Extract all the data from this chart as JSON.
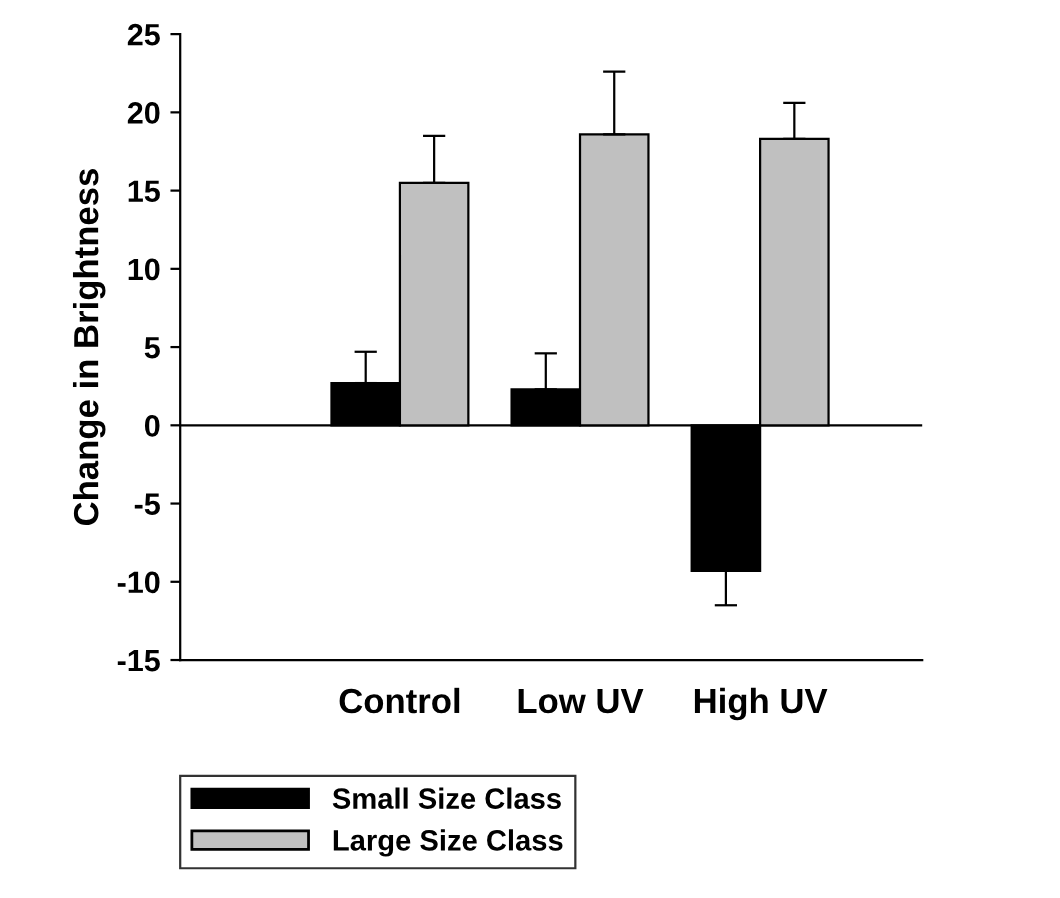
{
  "chart_data": {
    "type": "bar",
    "ylabel": "Change in Brightness",
    "categories": [
      "Control",
      "Low UV",
      "High UV"
    ],
    "series": [
      {
        "name": "Small Size Class",
        "color": "#000000",
        "values": [
          2.7,
          2.3,
          -9.3
        ],
        "errors": [
          [
            2.7,
            4.7
          ],
          [
            2.3,
            4.6
          ],
          [
            -11.5,
            -9.3
          ]
        ]
      },
      {
        "name": "Large Size Class",
        "color": "#c0c0c0",
        "values": [
          15.5,
          18.6,
          18.3
        ],
        "errors": [
          [
            15.5,
            18.5
          ],
          [
            18.6,
            22.6
          ],
          [
            18.3,
            20.6
          ]
        ]
      }
    ],
    "ylim": [
      -15,
      25
    ],
    "yticks": [
      -15,
      -10,
      -5,
      0,
      5,
      10,
      15,
      20,
      25
    ],
    "ref_lines": [
      {
        "axis": "y",
        "value": 0,
        "color": "#000000"
      }
    ],
    "grid": false,
    "legend": "bottom left"
  }
}
